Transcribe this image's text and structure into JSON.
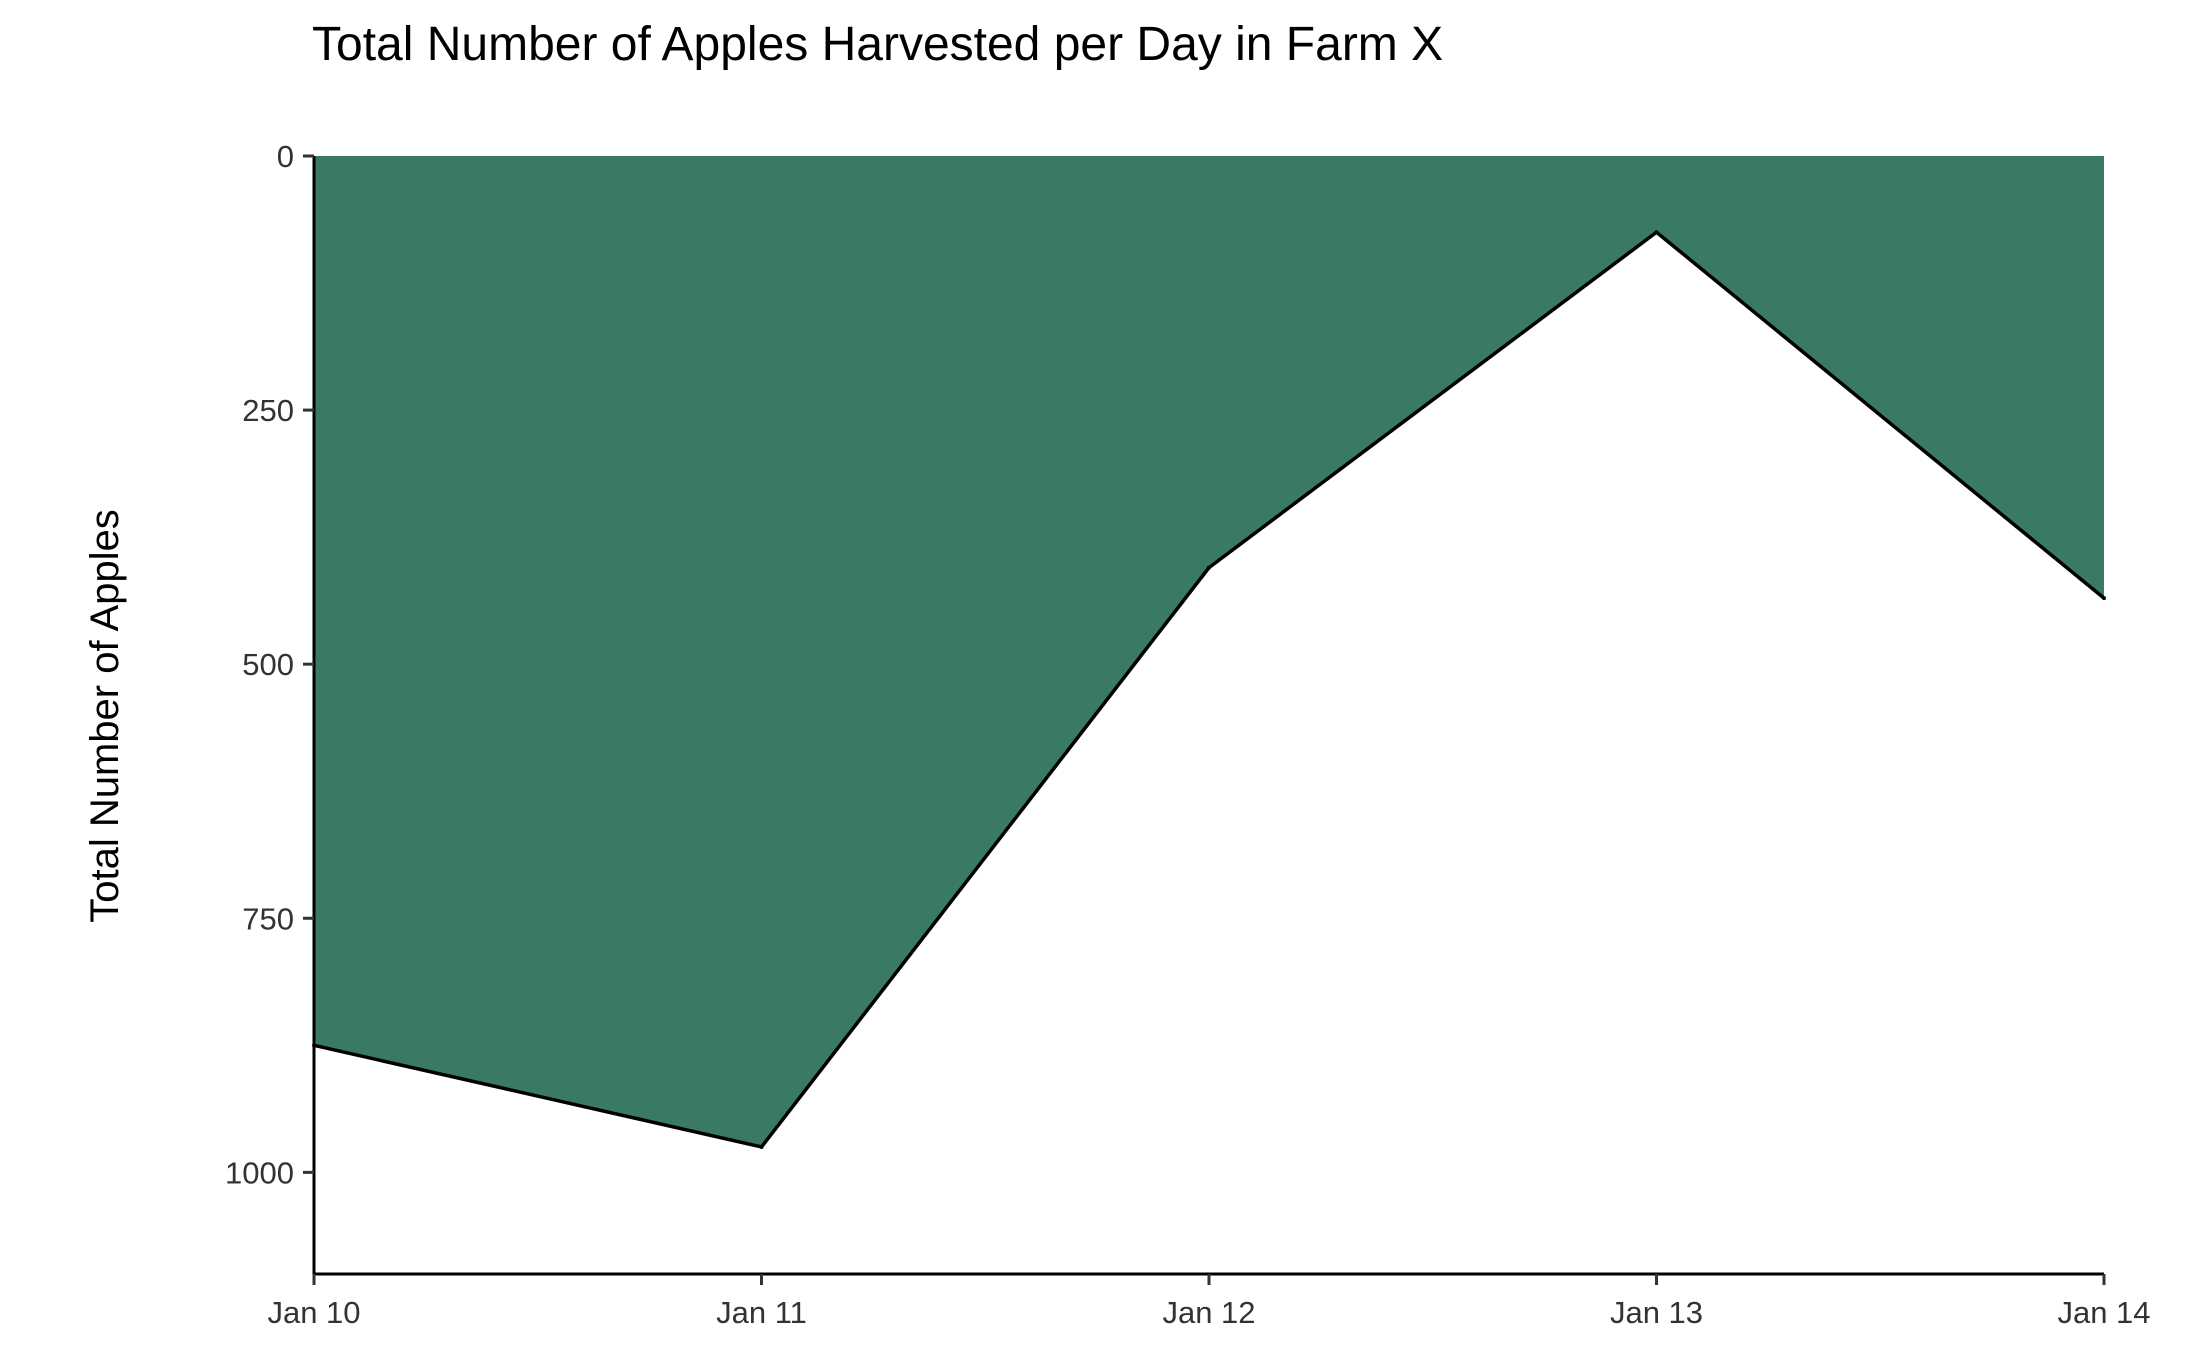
{
  "chart_data": {
    "type": "area",
    "title": "Total Number of Apples Harvested per Day in Farm X",
    "xlabel": "",
    "ylabel": "Total Number of Apples",
    "x": [
      "Jan 10",
      "Jan 11",
      "Jan 12",
      "Jan 13",
      "Jan 14"
    ],
    "series": [
      {
        "values": [
          875,
          975,
          405,
          75,
          435
        ]
      }
    ],
    "y_ticks": [
      0,
      250,
      500,
      750,
      1000
    ],
    "y_tick_labels": [
      "0",
      "250",
      "500",
      "750",
      "1000"
    ],
    "ylim": [
      0,
      1100
    ],
    "y_reversed": true,
    "fill_color": "#3a7a62",
    "line_color": "#000000",
    "grid": false,
    "legend": "none"
  }
}
